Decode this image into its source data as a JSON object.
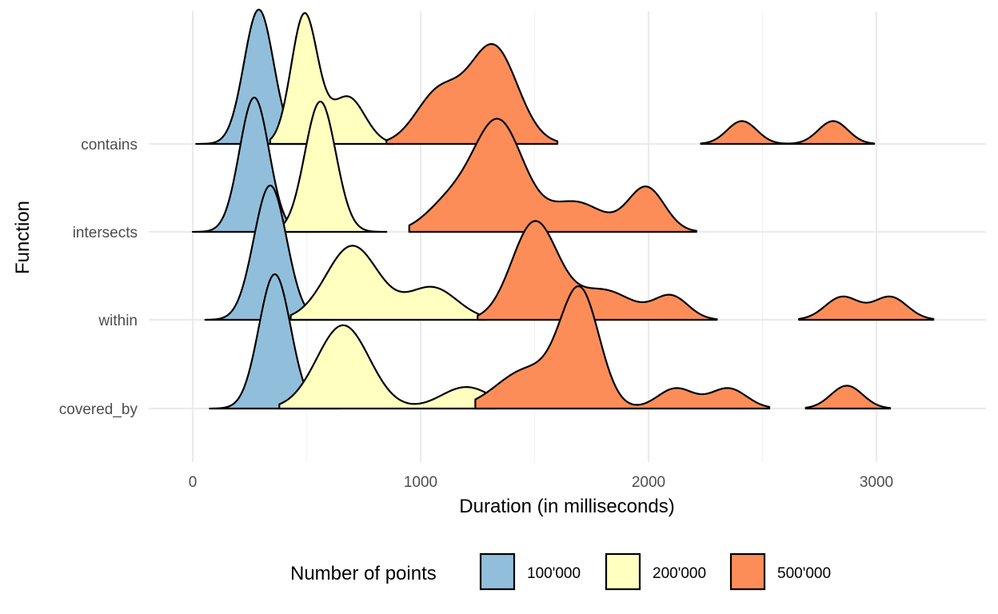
{
  "chart_data": {
    "type": "ridgeline",
    "xlabel": "Duration (in milliseconds)",
    "ylabel": "Function",
    "xlim": [
      -170,
      3480
    ],
    "x_ticks": [
      0,
      1000,
      2000,
      3000
    ],
    "x_tick_labels": [
      "0",
      "1000",
      "2000",
      "3000"
    ],
    "categories": [
      "covered_by",
      "within",
      "intersects",
      "contains"
    ],
    "grid": true,
    "legend": {
      "title": "Number of points",
      "position": "bottom",
      "entries": [
        {
          "label": "100'000",
          "color": "#91bfdb"
        },
        {
          "label": "200'000",
          "color": "#ffffbf"
        },
        {
          "label": "500'000",
          "color": "#fc8d59"
        }
      ]
    },
    "series": [
      {
        "name": "100'000",
        "color": "#91bfdb",
        "ridges": {
          "contains": {
            "range": [
              15,
              560
            ],
            "peaks": [
              [
                290,
                1.0,
                65
              ]
            ]
          },
          "intersects": {
            "range": [
              0,
              560
            ],
            "peaks": [
              [
                270,
                1.0,
                65
              ]
            ]
          },
          "within": {
            "range": [
              55,
              620
            ],
            "peaks": [
              [
                340,
                1.0,
                72
              ]
            ]
          },
          "covered_by": {
            "range": [
              75,
              650
            ],
            "peaks": [
              [
                360,
                1.0,
                70
              ]
            ]
          }
        }
      },
      {
        "name": "200'000",
        "color": "#ffffbf",
        "ridges": {
          "contains": {
            "range": [
              340,
              880
            ],
            "peaks": [
              [
                490,
                0.96,
                58
              ],
              [
                680,
                0.35,
                75
              ]
            ]
          },
          "intersects": {
            "range": [
              350,
              850
            ],
            "peaks": [
              [
                560,
                0.97,
                68
              ]
            ]
          },
          "within": {
            "range": [
              430,
              1290
            ],
            "peaks": [
              [
                700,
                0.55,
                115
              ],
              [
                1050,
                0.24,
                110
              ]
            ]
          },
          "covered_by": {
            "range": [
              380,
              1330
            ],
            "peaks": [
              [
                660,
                0.62,
                115
              ],
              [
                1200,
                0.16,
                110
              ]
            ]
          }
        }
      },
      {
        "name": "500'000",
        "color": "#fc8d59",
        "ridges": {
          "contains": {
            "range": [
              850,
              1600
            ],
            "peaks": [
              [
                1080,
                0.38,
                100
              ],
              [
                1320,
                0.72,
                105
              ]
            ],
            "range2": [
              2230,
              2990
            ],
            "peaks2": [
              [
                2410,
                0.17,
                65
              ],
              [
                2810,
                0.17,
                65
              ]
            ]
          },
          "intersects": {
            "range": [
              950,
              2210
            ],
            "peaks": [
              [
                1120,
                0.2,
                100
              ],
              [
                1340,
                0.82,
                110
              ],
              [
                1680,
                0.22,
                120
              ],
              [
                1990,
                0.33,
                80
              ]
            ]
          },
          "within": {
            "range": [
              1250,
              2300
            ],
            "peaks": [
              [
                1500,
                0.72,
                100
              ],
              [
                1800,
                0.22,
                130
              ],
              [
                2100,
                0.17,
                75
              ]
            ],
            "range2": [
              2660,
              3250
            ],
            "peaks2": [
              [
                2850,
                0.17,
                75
              ],
              [
                3060,
                0.17,
                75
              ]
            ]
          },
          "covered_by": {
            "range": [
              1240,
              2530
            ],
            "peaks": [
              [
                1470,
                0.29,
                135
              ],
              [
                1700,
                0.84,
                85
              ],
              [
                2120,
                0.15,
                80
              ],
              [
                2350,
                0.15,
                80
              ]
            ],
            "range2": [
              2690,
              3060
            ],
            "peaks2": [
              [
                2870,
                0.17,
                70
              ]
            ]
          }
        }
      }
    ]
  }
}
